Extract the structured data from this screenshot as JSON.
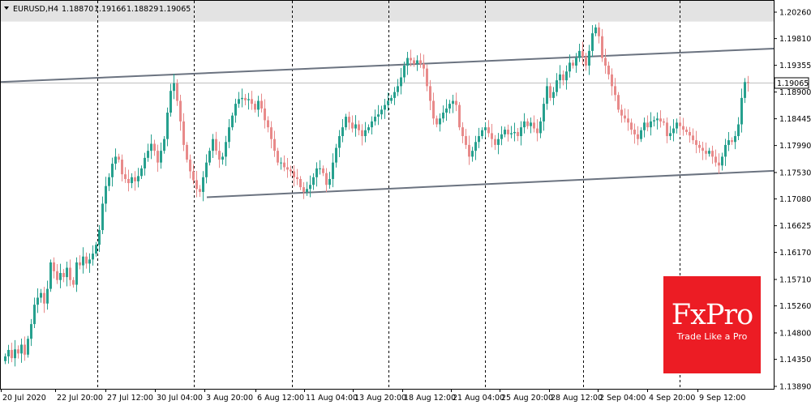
{
  "header": {
    "symbol": "EURUSD,H4",
    "open": "1.18870",
    "high": "1.19166",
    "low": "1.18829",
    "close": "1.19065"
  },
  "logo": {
    "brand": "FxPro",
    "tagline": "Trade Like a Pro"
  },
  "colors": {
    "bull": "#26a08e",
    "bear": "#e88a8a",
    "channel": "#6b7380",
    "band": "#e3e3e3",
    "price_line": "#c0c0c0",
    "logo_bg": "#ec1c24"
  },
  "chart_data": {
    "type": "candlestick",
    "symbol": "EURUSD",
    "timeframe": "H4",
    "current_price": 1.19065,
    "current_price_label": "1.19065",
    "ylim": [
      1.1388,
      1.206
    ],
    "y_ticks": [
      "1.20260",
      "1.19810",
      "1.19355",
      "1.18900",
      "1.18445",
      "1.17990",
      "1.17530",
      "1.17080",
      "1.16625",
      "1.16170",
      "1.15710",
      "1.15260",
      "1.14800",
      "1.14350",
      "1.13890"
    ],
    "x_ticks": [
      "20 Jul 2020",
      "22 Jul 20:00",
      "27 Jul 12:00",
      "30 Jul 04:00",
      "3 Aug 20:00",
      "6 Aug 12:00",
      "11 Aug 04:00",
      "13 Aug 20:00",
      "18 Aug 12:00",
      "21 Aug 04:00",
      "25 Aug 20:00",
      "28 Aug 12:00",
      "2 Sep 04:00",
      "4 Sep 20:00",
      "9 Sep 12:00"
    ],
    "separator_labels": [
      "22 Jul 20:00",
      "30 Jul 04:00",
      "6 Aug 12:00",
      "13 Aug 20:00",
      "21 Aug 04:00",
      "28 Aug 12:00",
      "4 Sep 20:00"
    ],
    "highlight_band": [
      1.201,
      1.206
    ],
    "channel_lines": [
      {
        "from": [
          "20 Jul 2020",
          1.1907
        ],
        "to": [
          "9 Sep 12:00+",
          1.1964
        ]
      },
      {
        "from": [
          "3 Aug 20:00-",
          1.1711
        ],
        "to": [
          "9 Sep 12:00+",
          1.1756
        ]
      }
    ],
    "candle_closes": [
      1.144,
      1.1451,
      1.1437,
      1.1452,
      1.1445,
      1.146,
      1.1443,
      1.147,
      1.1495,
      1.1528,
      1.154,
      1.1548,
      1.153,
      1.1555,
      1.16,
      1.1585,
      1.157,
      1.1582,
      1.1575,
      1.1591,
      1.157,
      1.1562,
      1.16,
      1.1595,
      1.161,
      1.1598,
      1.1605,
      1.1615,
      1.163,
      1.1655,
      1.17,
      1.173,
      1.1745,
      1.1768,
      1.178,
      1.1775,
      1.175,
      1.1742,
      1.1735,
      1.1745,
      1.1738,
      1.1747,
      1.176,
      1.1778,
      1.179,
      1.1802,
      1.179,
      1.177,
      1.179,
      1.181,
      1.1855,
      1.1892,
      1.1905,
      1.1875,
      1.184,
      1.18,
      1.1775,
      1.1755,
      1.174,
      1.1725,
      1.172,
      1.1745,
      1.177,
      1.179,
      1.181,
      1.179,
      1.1775,
      1.178,
      1.1805,
      1.183,
      1.185,
      1.187,
      1.1878,
      1.188,
      1.1876,
      1.1878,
      1.187,
      1.186,
      1.1875,
      1.1862,
      1.1842,
      1.183,
      1.181,
      1.179,
      1.177,
      1.177,
      1.1762,
      1.1758,
      1.1755,
      1.1745,
      1.1742,
      1.1728,
      1.172,
      1.1725,
      1.1732,
      1.1745,
      1.176,
      1.176,
      1.1752,
      1.1732,
      1.1742,
      1.177,
      1.1795,
      1.1815,
      1.183,
      1.1848,
      1.1838,
      1.1828,
      1.1835,
      1.1825,
      1.1815,
      1.1825,
      1.183,
      1.184,
      1.1848,
      1.1852,
      1.186,
      1.1868,
      1.1875,
      1.188,
      1.189,
      1.19,
      1.1915,
      1.1935,
      1.1948,
      1.1944,
      1.1938,
      1.1944,
      1.1938,
      1.193,
      1.19,
      1.1875,
      1.1845,
      1.1835,
      1.1845,
      1.1855,
      1.1862,
      1.187,
      1.1875,
      1.1868,
      1.183,
      1.1815,
      1.18,
      1.178,
      1.179,
      1.1805,
      1.1815,
      1.1825,
      1.183,
      1.182,
      1.181,
      1.18,
      1.181,
      1.1818,
      1.1826,
      1.1818,
      1.182,
      1.1822,
      1.1815,
      1.183,
      1.184,
      1.1832,
      1.1838,
      1.1828,
      1.182,
      1.184,
      1.187,
      1.19,
      1.188,
      1.189,
      1.191,
      1.192,
      1.191,
      1.1925,
      1.194,
      1.1935,
      1.1948,
      1.196,
      1.195,
      1.1935,
      1.196,
      1.199,
      1.2,
      1.1985,
      1.1948,
      1.1935,
      1.192,
      1.19,
      1.1885,
      1.186,
      1.185,
      1.1845,
      1.1838,
      1.1826,
      1.1818,
      1.181,
      1.1825,
      1.1838,
      1.183,
      1.184,
      1.1842,
      1.1845,
      1.184,
      1.1838,
      1.1815,
      1.182,
      1.1828,
      1.1838,
      1.1832,
      1.1826,
      1.1822,
      1.1816,
      1.1808,
      1.18,
      1.1795,
      1.179,
      1.1785,
      1.179,
      1.178,
      1.177,
      1.1765,
      1.178,
      1.18,
      1.1808,
      1.1805,
      1.1815,
      1.1835,
      1.188,
      1.1907,
      1.19065
    ]
  }
}
